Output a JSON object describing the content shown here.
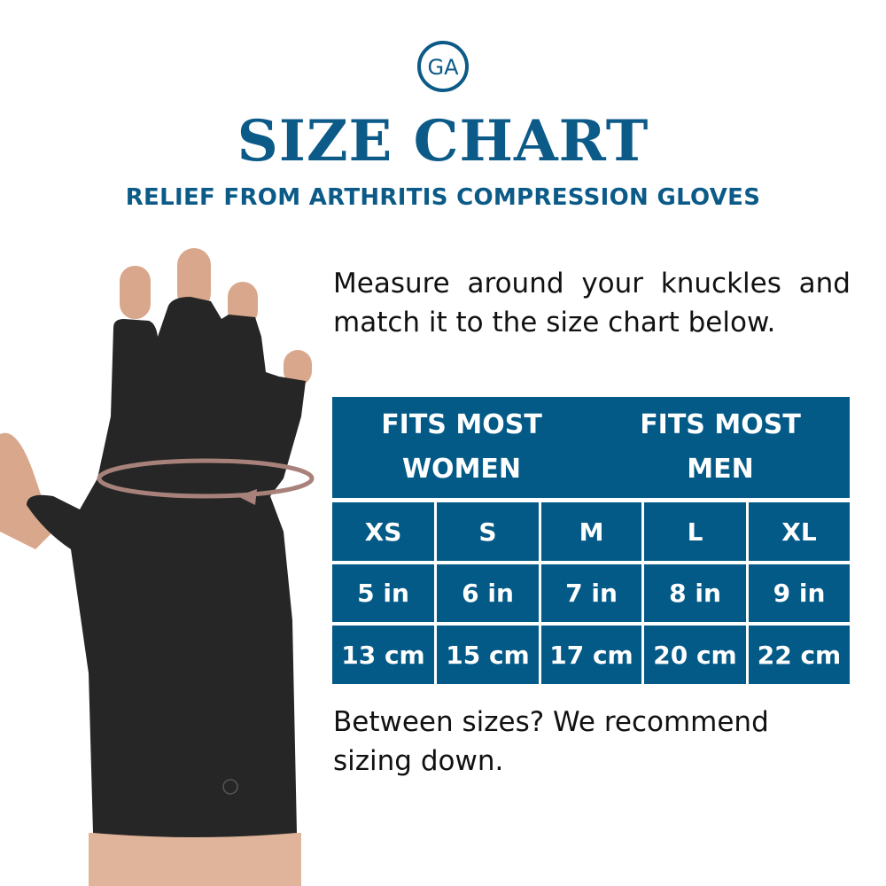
{
  "brand": {
    "logo_text": "GA",
    "color": "#0b5a88"
  },
  "title": "SIZE CHART",
  "subtitle": "RELIEF FROM ARTHRITIS COMPRESSION GLOVES",
  "instructions": "Measure around your knuckles and match it to the size chart below.",
  "table": {
    "color": "#035a87",
    "groups": [
      {
        "label": "FITS MOST WOMEN"
      },
      {
        "label": "FITS MOST MEN"
      }
    ],
    "sizes": [
      "XS",
      "S",
      "M",
      "L",
      "XL"
    ],
    "inches": [
      "5 in",
      "6 in",
      "7 in",
      "8 in",
      "9 in"
    ],
    "cm": [
      "13 cm",
      "15 cm",
      "17 cm",
      "20 cm",
      "22 cm"
    ]
  },
  "footer": "Between sizes? We recommend sizing down."
}
